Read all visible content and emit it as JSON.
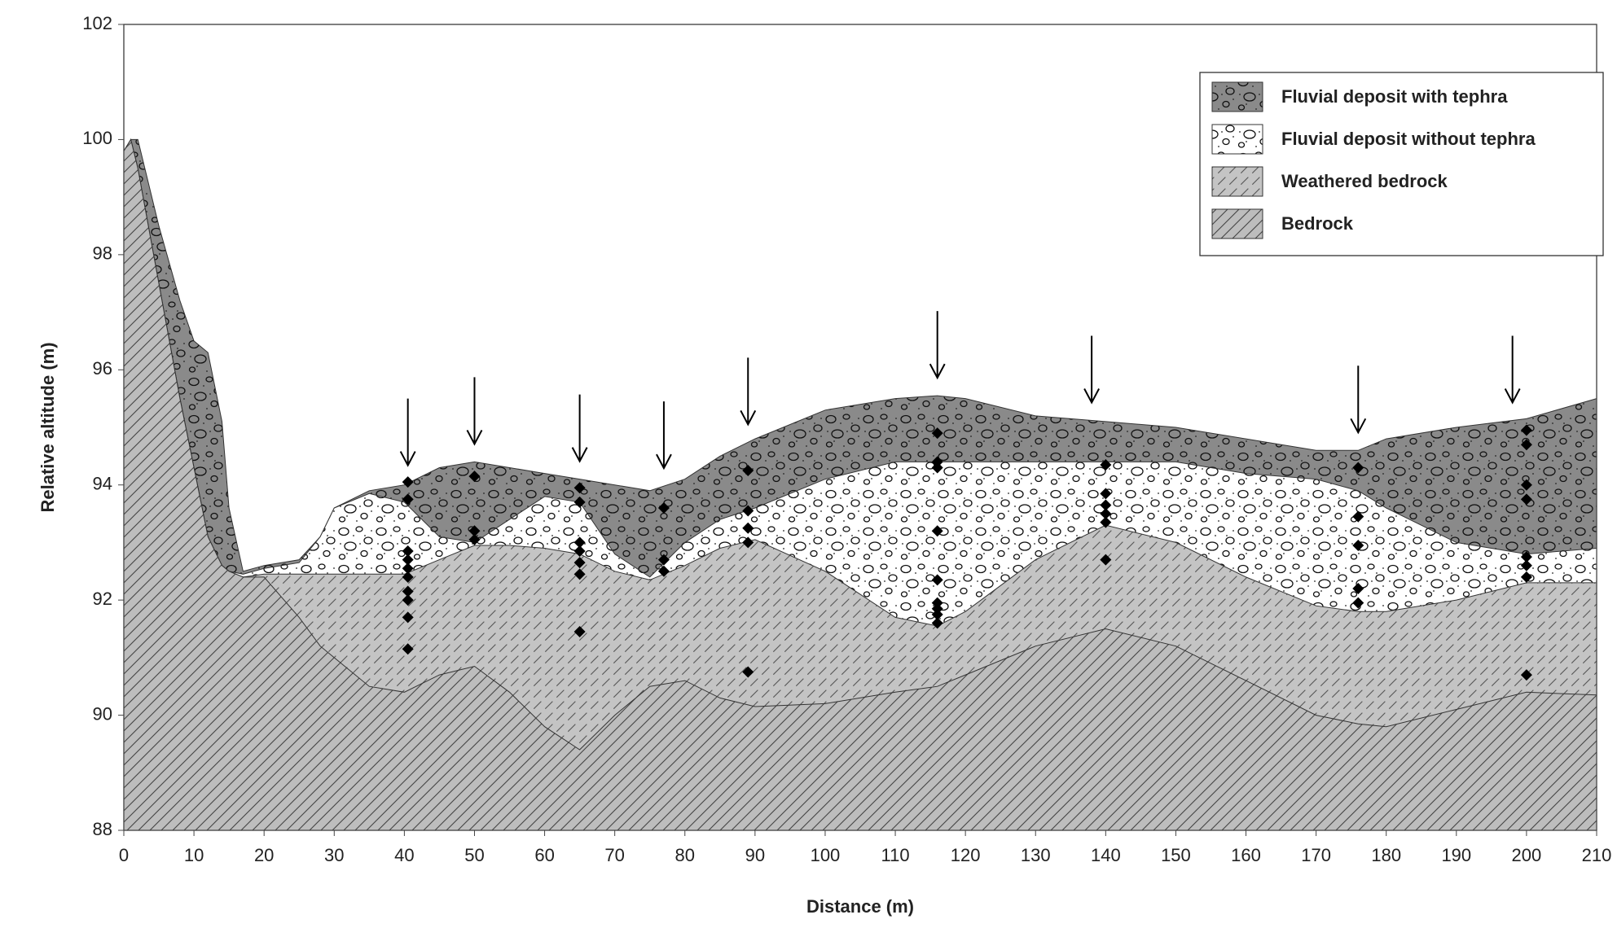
{
  "chart_data": {
    "type": "area",
    "x_label": "Distance (m)",
    "y_label": "Relative altitude (m)",
    "x": [
      0,
      1,
      2,
      5,
      8,
      10,
      12,
      14,
      15,
      17,
      20,
      25,
      28,
      30,
      35,
      40,
      45,
      50,
      55,
      60,
      65,
      70,
      75,
      80,
      85,
      90,
      100,
      110,
      116,
      120,
      130,
      140,
      150,
      160,
      170,
      176,
      180,
      190,
      200,
      210
    ],
    "series": [
      {
        "name": "Fluvial deposit with tephra",
        "color": "#8a8a8a",
        "pattern": "pebbles",
        "values": [
          99.8,
          100,
          100,
          98.5,
          97.2,
          96.5,
          96.3,
          95.1,
          93.6,
          92.5,
          92.6,
          92.7,
          93.1,
          93.6,
          93.9,
          94.0,
          94.3,
          94.4,
          94.3,
          94.2,
          94.1,
          94.0,
          93.9,
          94.1,
          94.5,
          94.8,
          95.3,
          95.5,
          95.55,
          95.5,
          95.2,
          95.1,
          95.0,
          94.8,
          94.6,
          94.6,
          94.8,
          95.0,
          95.15,
          95.5
        ]
      },
      {
        "name": "Fluvial deposit without tephra",
        "color": "#ffffff",
        "pattern": "pebbles",
        "values": [
          99.8,
          100,
          99.5,
          97.5,
          95.5,
          94.3,
          93.1,
          92.6,
          92.5,
          92.45,
          92.55,
          92.65,
          93.1,
          93.6,
          93.85,
          93.7,
          93.1,
          93.0,
          93.4,
          93.8,
          93.7,
          92.8,
          92.4,
          93.0,
          93.4,
          93.6,
          94.1,
          94.4,
          94.4,
          94.4,
          94.4,
          94.4,
          94.4,
          94.2,
          94.1,
          93.9,
          93.6,
          93.0,
          92.8,
          92.9
        ]
      },
      {
        "name": "Weathered bedrock",
        "color": "#c4c4c4",
        "pattern": "dashed-hatch",
        "values": [
          99.8,
          100,
          99.5,
          97.5,
          95.5,
          94.3,
          93.1,
          92.6,
          92.5,
          92.4,
          92.45,
          92.45,
          92.45,
          92.45,
          92.45,
          92.45,
          92.7,
          92.95,
          92.95,
          92.9,
          92.8,
          92.5,
          92.35,
          92.6,
          92.9,
          93.05,
          92.5,
          91.7,
          91.55,
          91.8,
          92.7,
          93.3,
          93.0,
          92.4,
          91.9,
          91.8,
          91.8,
          92.0,
          92.3,
          92.3
        ]
      },
      {
        "name": "Bedrock",
        "color": "#bdbdbd",
        "pattern": "hatch",
        "values": [
          99.8,
          100,
          99.5,
          97.5,
          95.5,
          94.3,
          93.1,
          92.6,
          92.5,
          92.4,
          92.4,
          91.7,
          91.2,
          91.0,
          90.5,
          90.4,
          90.7,
          90.85,
          90.4,
          89.8,
          89.4,
          90.0,
          90.5,
          90.6,
          90.3,
          90.15,
          90.2,
          90.4,
          90.5,
          90.7,
          91.2,
          91.5,
          91.2,
          90.6,
          90.0,
          89.85,
          89.8,
          90.1,
          90.4,
          90.35
        ]
      }
    ],
    "samples": {
      "color": "#000000",
      "x": [
        40.5,
        40.5,
        40.5,
        40.5,
        40.5,
        40.5,
        40.5,
        40.5,
        40.5,
        40.5,
        50,
        50,
        50,
        65,
        65,
        65,
        65,
        65,
        65,
        65,
        77,
        77,
        77,
        89,
        89,
        89,
        89,
        89,
        116,
        116,
        116,
        116,
        116,
        116,
        116,
        116,
        116,
        140,
        140,
        140,
        140,
        140,
        140,
        176,
        176,
        176,
        176,
        176,
        200,
        200,
        200,
        200,
        200,
        200,
        200,
        200
      ],
      "y": [
        94.05,
        93.75,
        92.85,
        92.7,
        92.55,
        92.4,
        92.15,
        92.0,
        91.7,
        91.15,
        94.15,
        93.2,
        93.05,
        93.95,
        93.7,
        93.0,
        92.85,
        92.65,
        92.45,
        91.45,
        93.6,
        92.7,
        92.5,
        94.25,
        93.55,
        93.25,
        93.0,
        90.75,
        94.9,
        94.4,
        94.3,
        93.2,
        92.35,
        91.95,
        91.85,
        91.75,
        91.6,
        94.35,
        93.85,
        93.65,
        93.5,
        93.35,
        92.7,
        94.3,
        93.45,
        92.95,
        92.2,
        91.95,
        94.95,
        94.7,
        94.0,
        93.75,
        92.75,
        92.6,
        92.4,
        90.7
      ]
    },
    "arrows_x": [
      40.5,
      50,
      65,
      77,
      89,
      116,
      138,
      176,
      198
    ],
    "xlim": [
      0,
      210
    ],
    "xticks": [
      0,
      10,
      20,
      30,
      40,
      50,
      60,
      70,
      80,
      90,
      100,
      110,
      120,
      130,
      140,
      150,
      160,
      170,
      180,
      190,
      200,
      210
    ],
    "ylim": [
      88,
      102
    ],
    "yticks": [
      88,
      90,
      92,
      94,
      96,
      98,
      100,
      102
    ],
    "legend": "upper right"
  }
}
